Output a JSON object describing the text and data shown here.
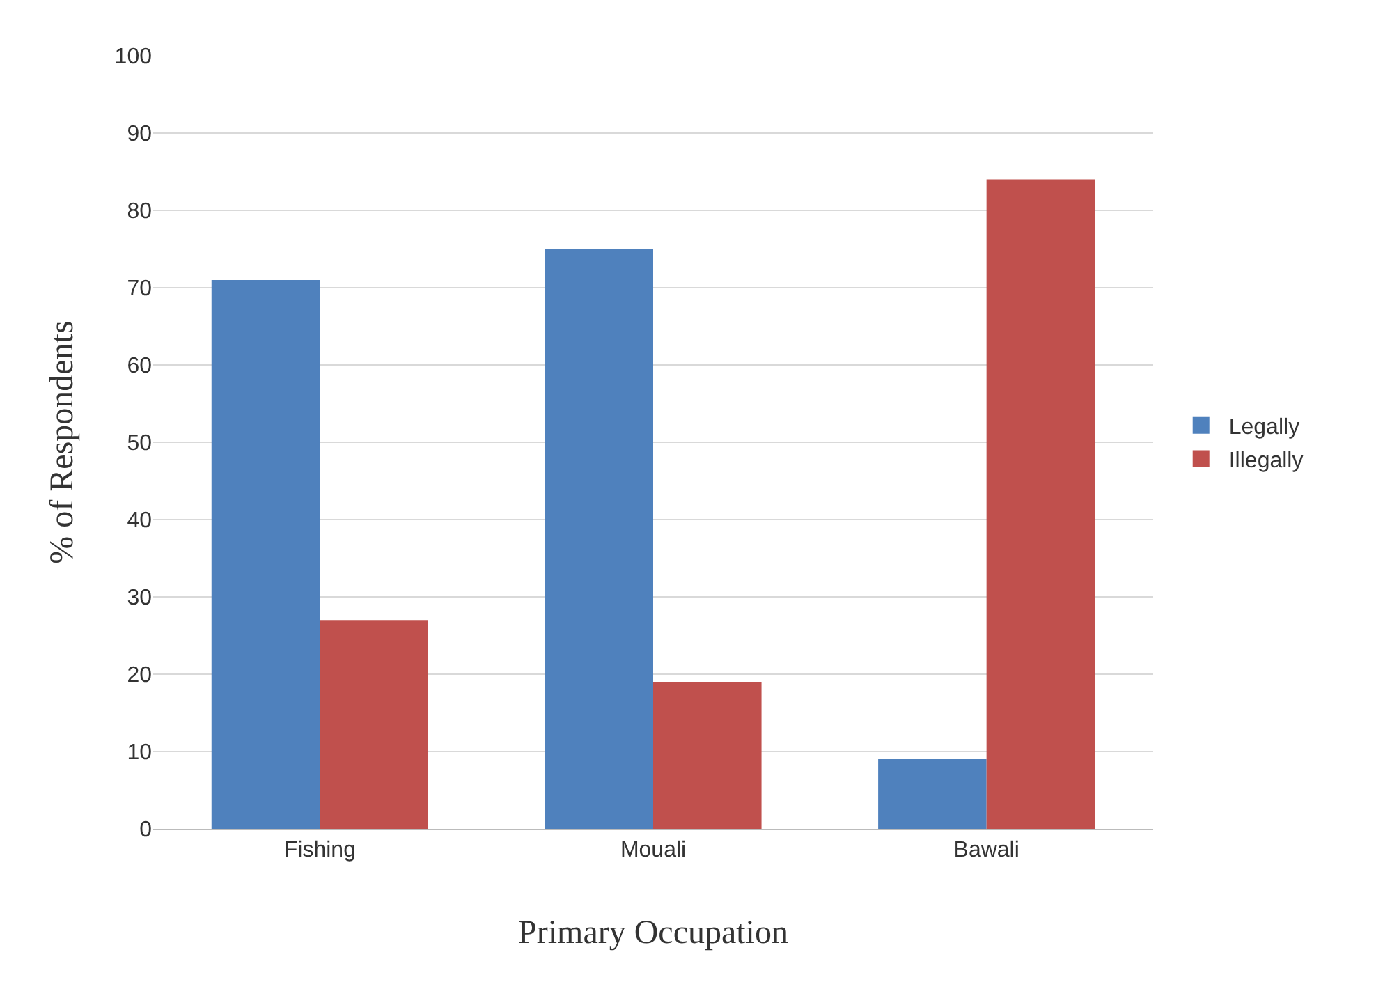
{
  "chart_data": {
    "type": "bar",
    "xlabel": "Primary Occupation",
    "ylabel": "% of Respondents",
    "categories": [
      "Fishing",
      "Mouali",
      "Bawali"
    ],
    "series": [
      {
        "name": "Legally",
        "color": "#4f81bd",
        "values": [
          71,
          75,
          9
        ]
      },
      {
        "name": "Illegally",
        "color": "#c0504d",
        "values": [
          27,
          19,
          84
        ]
      }
    ],
    "ylim": [
      0,
      100
    ],
    "yticks": [
      0,
      10,
      20,
      30,
      40,
      50,
      60,
      70,
      80,
      90,
      100
    ],
    "grid": "y",
    "legend": "right"
  }
}
